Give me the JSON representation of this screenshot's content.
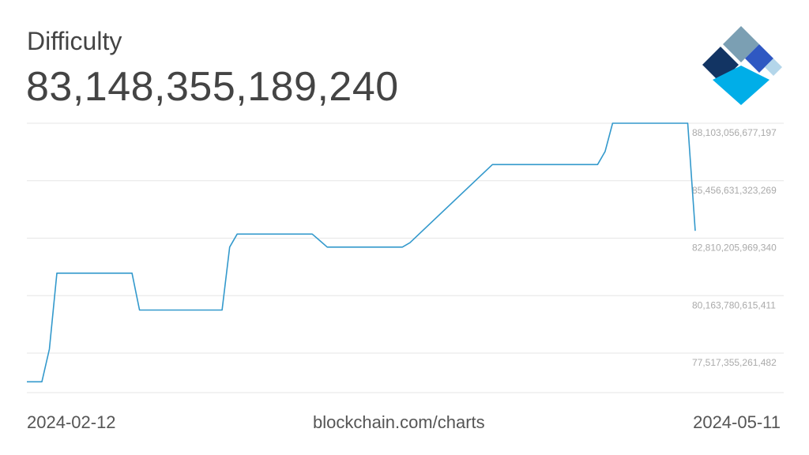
{
  "header": {
    "title": "Difficulty",
    "current_value": "83,148,355,189,240"
  },
  "footer": {
    "start_date": "2024-02-12",
    "source": "blockchain.com/charts",
    "end_date": "2024-05-11"
  },
  "logo": {
    "icon": "blockchain-logo-icon",
    "colors": [
      "#7b9fb3",
      "#123463",
      "#2f58c2",
      "#00aee8",
      "#b4d6ea"
    ]
  },
  "chart_data": {
    "type": "line",
    "xlim": [
      "2024-02-12",
      "2024-05-11"
    ],
    "ylim": [
      75700000000000,
      88103056677197
    ],
    "yticks": [
      77517355261482,
      80163780615411,
      82810205969340,
      85456631323269,
      88103056677197
    ],
    "ytick_labels": [
      "77,517,355,261,482",
      "80,163,780,615,411",
      "82,810,205,969,340",
      "85,456,631,323,269",
      "88,103,056,677,197"
    ],
    "grid": true,
    "line_color": "#3399cc",
    "series": [
      {
        "x": [
          "2024-02-12",
          "2024-02-14",
          "2024-02-15",
          "2024-02-16",
          "2024-02-26",
          "2024-02-27",
          "2024-02-28",
          "2024-03-09",
          "2024-03-10",
          "2024-03-11",
          "2024-03-21",
          "2024-03-22",
          "2024-03-23",
          "2024-03-24",
          "2024-04-02",
          "2024-04-03",
          "2024-04-14",
          "2024-04-15",
          "2024-04-16",
          "2024-04-28",
          "2024-04-29",
          "2024-04-30",
          "2024-05-01",
          "2024-05-10",
          "2024-05-11"
        ],
        "y": [
          76200000000000,
          76200000000000,
          77700000000000,
          81200000000000,
          81200000000000,
          79500000000000,
          79500000000000,
          79500000000000,
          82400000000000,
          83000000000000,
          83000000000000,
          82700000000000,
          82400000000000,
          82400000000000,
          82400000000000,
          82600000000000,
          86200000000000,
          86200000000000,
          86200000000000,
          86200000000000,
          86800000000000,
          88103056677197,
          88103056677197,
          88103056677197,
          83148355189240
        ]
      }
    ]
  }
}
